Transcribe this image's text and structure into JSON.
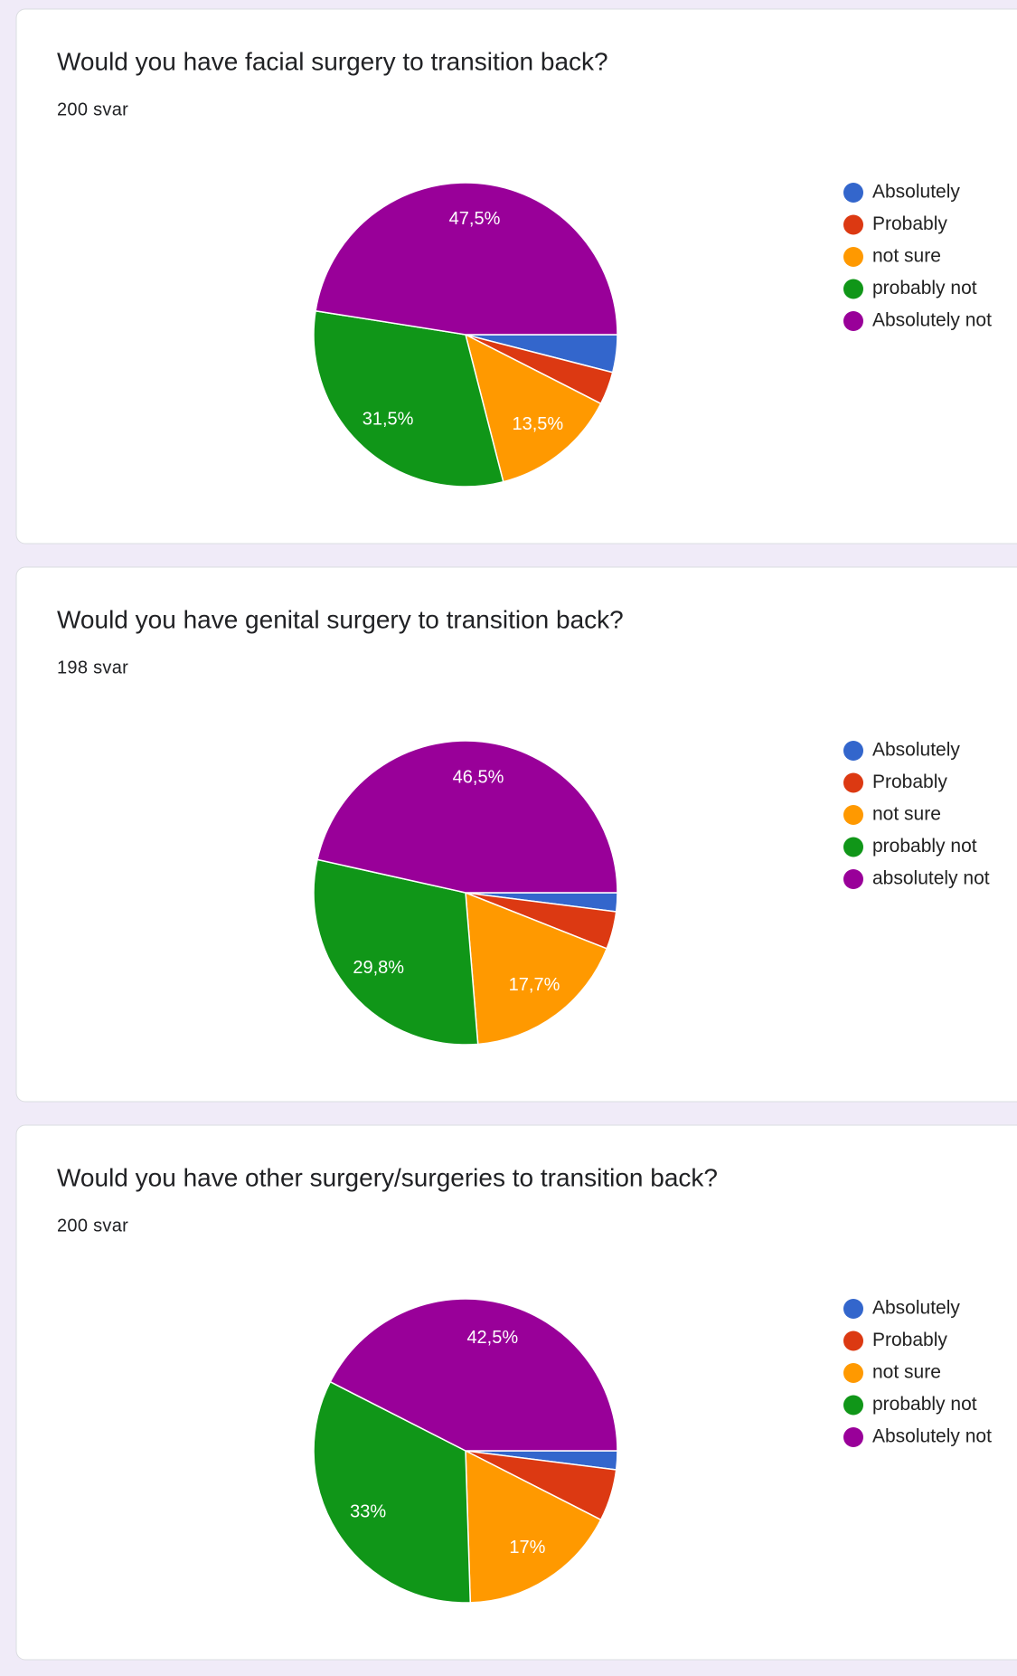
{
  "chart_data": [
    {
      "type": "pie",
      "title": "Would you have facial surgery to transition back?",
      "subtitle": "200 svar",
      "categories": [
        "Absolutely",
        "Probably",
        "not sure",
        "probably not",
        "Absolutely not"
      ],
      "values": [
        4,
        3.5,
        13.5,
        31.5,
        47.5
      ],
      "value_labels": [
        null,
        null,
        "13,5%",
        "31,5%",
        "47,5%"
      ],
      "colors": [
        "#3366cc",
        "#dc3912",
        "#ff9900",
        "#109618",
        "#990099"
      ]
    },
    {
      "type": "pie",
      "title": "Would you have genital surgery to transition back?",
      "subtitle": "198 svar",
      "categories": [
        "Absolutely",
        "Probably",
        "not sure",
        "probably not",
        "absolutely not"
      ],
      "values": [
        2,
        4,
        17.7,
        29.8,
        46.5
      ],
      "value_labels": [
        null,
        null,
        "17,7%",
        "29,8%",
        "46,5%"
      ],
      "colors": [
        "#3366cc",
        "#dc3912",
        "#ff9900",
        "#109618",
        "#990099"
      ]
    },
    {
      "type": "pie",
      "title": "Would you have other surgery/surgeries to transition back?",
      "subtitle": "200 svar",
      "categories": [
        "Absolutely",
        "Probably",
        "not sure",
        "probably not",
        "Absolutely not"
      ],
      "values": [
        2,
        5.5,
        17,
        33,
        42.5
      ],
      "value_labels": [
        null,
        null,
        "17%",
        "33%",
        "42,5%"
      ],
      "colors": [
        "#3366cc",
        "#dc3912",
        "#ff9900",
        "#109618",
        "#990099"
      ]
    }
  ]
}
